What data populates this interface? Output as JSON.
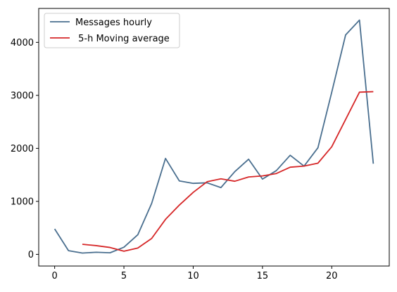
{
  "chart_data": {
    "type": "line",
    "title": "",
    "xlabel": "",
    "ylabel": "",
    "xlim": [
      -1.15,
      24.15
    ],
    "ylim": [
      -220,
      4640
    ],
    "xticks": [
      0,
      5,
      10,
      15,
      20
    ],
    "yticks": [
      0,
      1000,
      2000,
      3000,
      4000
    ],
    "x": [
      0,
      1,
      2,
      3,
      4,
      5,
      6,
      7,
      8,
      9,
      10,
      11,
      12,
      13,
      14,
      15,
      16,
      17,
      18,
      19,
      20,
      21,
      22,
      23
    ],
    "grid": false,
    "legend_position": "top-left",
    "series": [
      {
        "name": "Messages hourly",
        "color": "#4a6f8f",
        "x": [
          0,
          1,
          2,
          3,
          4,
          5,
          6,
          7,
          8,
          9,
          10,
          11,
          12,
          13,
          14,
          15,
          16,
          17,
          18,
          19,
          20,
          21,
          22,
          23
        ],
        "values": [
          480,
          70,
          25,
          40,
          30,
          135,
          370,
          960,
          1810,
          1385,
          1340,
          1350,
          1260,
          1560,
          1795,
          1420,
          1580,
          1870,
          1665,
          2010,
          3060,
          4140,
          4420,
          1710
        ]
      },
      {
        "name": " 5-h Moving average",
        "color": "#d62728",
        "x": [
          2,
          3,
          4,
          5,
          6,
          7,
          8,
          9,
          10,
          11,
          12,
          13,
          14,
          15,
          16,
          17,
          18,
          19,
          20,
          21,
          22,
          23
        ],
        "values": [
          190,
          165,
          130,
          60,
          120,
          300,
          660,
          930,
          1170,
          1370,
          1425,
          1380,
          1460,
          1480,
          1525,
          1645,
          1665,
          1720,
          2030,
          2545,
          3060,
          3070
        ]
      }
    ]
  }
}
